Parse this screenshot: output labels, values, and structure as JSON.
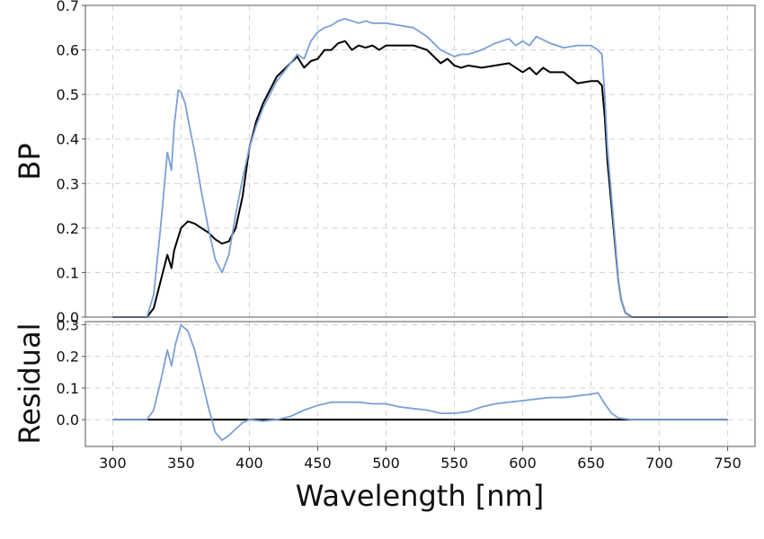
{
  "chart_data": [
    {
      "type": "line",
      "panel": "top",
      "ylabel": "BP",
      "xlim": [
        280,
        770
      ],
      "ylim": [
        0,
        0.7
      ],
      "yticks": [
        0.0,
        0.1,
        0.2,
        0.3,
        0.4,
        0.5,
        0.6,
        0.7
      ],
      "grid": true,
      "colors": {
        "black_series": "#000000",
        "blue_series": "#7b9fd6"
      },
      "series": [
        {
          "color": "#000000",
          "x": [
            300,
            325,
            330,
            335,
            340,
            343,
            345,
            350,
            355,
            360,
            365,
            370,
            375,
            380,
            385,
            390,
            395,
            400,
            405,
            410,
            420,
            430,
            435,
            440,
            445,
            450,
            455,
            460,
            465,
            470,
            475,
            480,
            485,
            490,
            495,
            500,
            510,
            520,
            530,
            540,
            545,
            550,
            555,
            560,
            570,
            580,
            590,
            600,
            605,
            610,
            615,
            620,
            630,
            640,
            650,
            655,
            658,
            660,
            662,
            665,
            668,
            670,
            672,
            675,
            680,
            685,
            690,
            750
          ],
          "y": [
            0.0,
            0.0,
            0.02,
            0.08,
            0.14,
            0.11,
            0.15,
            0.2,
            0.215,
            0.21,
            0.2,
            0.19,
            0.175,
            0.165,
            0.17,
            0.2,
            0.27,
            0.38,
            0.44,
            0.48,
            0.54,
            0.57,
            0.585,
            0.56,
            0.575,
            0.58,
            0.6,
            0.6,
            0.615,
            0.62,
            0.6,
            0.61,
            0.605,
            0.61,
            0.6,
            0.61,
            0.61,
            0.61,
            0.6,
            0.57,
            0.58,
            0.565,
            0.56,
            0.565,
            0.56,
            0.565,
            0.57,
            0.55,
            0.56,
            0.545,
            0.56,
            0.55,
            0.55,
            0.525,
            0.53,
            0.53,
            0.52,
            0.45,
            0.35,
            0.25,
            0.15,
            0.08,
            0.04,
            0.01,
            0.0,
            0.0,
            0.0,
            0.0
          ]
        },
        {
          "color": "#7b9fd6",
          "x": [
            300,
            325,
            330,
            335,
            340,
            343,
            345,
            348,
            350,
            353,
            356,
            360,
            365,
            370,
            375,
            380,
            385,
            390,
            395,
            400,
            405,
            410,
            420,
            430,
            435,
            440,
            445,
            450,
            455,
            460,
            465,
            470,
            475,
            480,
            485,
            490,
            500,
            510,
            520,
            530,
            540,
            550,
            555,
            560,
            570,
            580,
            590,
            595,
            600,
            605,
            610,
            620,
            630,
            640,
            650,
            655,
            658,
            660,
            662,
            665,
            668,
            670,
            672,
            675,
            680,
            685,
            690,
            750
          ],
          "y": [
            0.0,
            0.0,
            0.05,
            0.2,
            0.37,
            0.33,
            0.43,
            0.51,
            0.505,
            0.48,
            0.43,
            0.37,
            0.28,
            0.2,
            0.13,
            0.1,
            0.14,
            0.23,
            0.31,
            0.38,
            0.43,
            0.47,
            0.53,
            0.57,
            0.59,
            0.58,
            0.62,
            0.64,
            0.65,
            0.655,
            0.665,
            0.67,
            0.665,
            0.66,
            0.665,
            0.66,
            0.66,
            0.655,
            0.65,
            0.63,
            0.6,
            0.585,
            0.59,
            0.59,
            0.6,
            0.615,
            0.625,
            0.61,
            0.62,
            0.61,
            0.63,
            0.615,
            0.605,
            0.61,
            0.61,
            0.6,
            0.59,
            0.5,
            0.38,
            0.27,
            0.16,
            0.08,
            0.04,
            0.01,
            0.0,
            0.0,
            0.0,
            0.0
          ]
        }
      ]
    },
    {
      "type": "line",
      "panel": "bottom",
      "ylabel": "Residual",
      "xlabel": "Wavelength [nm]",
      "xlim": [
        280,
        770
      ],
      "xticks": [
        300,
        350,
        400,
        450,
        500,
        550,
        600,
        650,
        700,
        750
      ],
      "ylim": [
        -0.085,
        0.31
      ],
      "yticks": [
        0.0,
        0.1,
        0.2,
        0.3
      ],
      "grid": true,
      "series": [
        {
          "color": "#000000",
          "x": [
            300,
            750
          ],
          "y": [
            0.0,
            0.0
          ]
        },
        {
          "color": "#7b9fd6",
          "x": [
            300,
            325,
            330,
            335,
            340,
            343,
            346,
            350,
            355,
            360,
            365,
            370,
            375,
            380,
            385,
            390,
            395,
            400,
            410,
            420,
            430,
            440,
            450,
            460,
            470,
            480,
            490,
            500,
            510,
            520,
            530,
            540,
            550,
            560,
            570,
            580,
            590,
            600,
            610,
            620,
            630,
            640,
            650,
            655,
            660,
            665,
            670,
            680,
            750
          ],
          "y": [
            0.0,
            0.0,
            0.03,
            0.12,
            0.22,
            0.17,
            0.24,
            0.3,
            0.28,
            0.22,
            0.13,
            0.04,
            -0.04,
            -0.065,
            -0.05,
            -0.03,
            -0.01,
            0.0,
            -0.005,
            0.0,
            0.01,
            0.03,
            0.045,
            0.055,
            0.055,
            0.055,
            0.05,
            0.05,
            0.04,
            0.035,
            0.03,
            0.02,
            0.02,
            0.025,
            0.04,
            0.05,
            0.055,
            0.06,
            0.065,
            0.07,
            0.07,
            0.075,
            0.08,
            0.085,
            0.05,
            0.02,
            0.005,
            0.0,
            0.0
          ]
        }
      ]
    }
  ]
}
